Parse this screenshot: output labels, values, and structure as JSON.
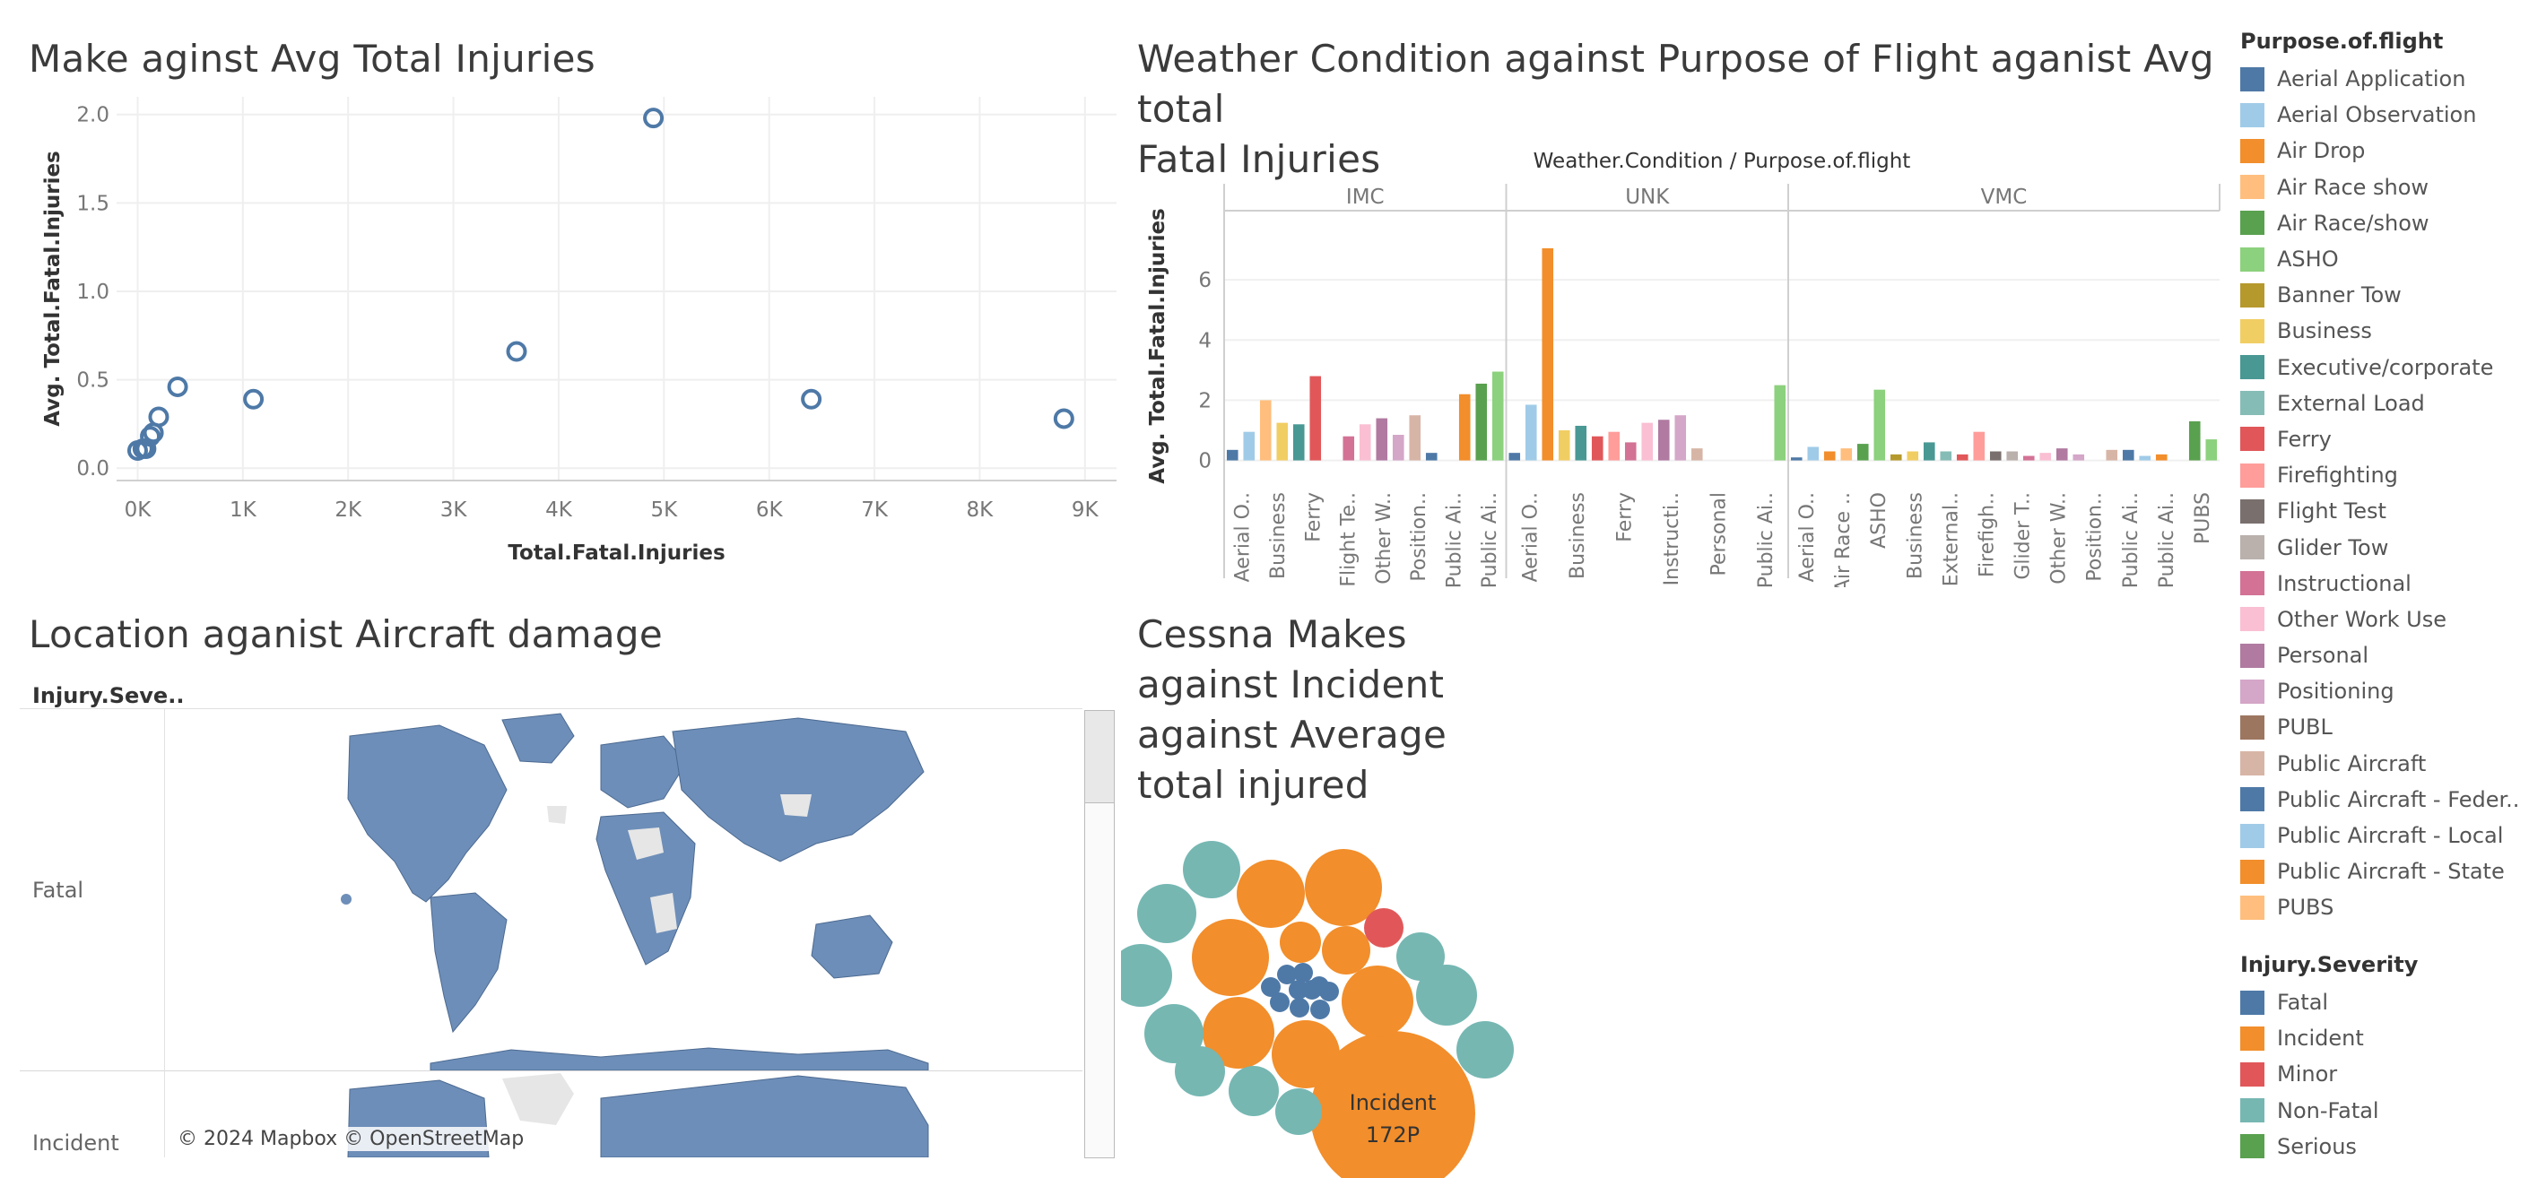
{
  "titles": {
    "scatter": "Make aginst Avg Total Injuries",
    "bar": "Weather Condition against Purpose of Flight aganist Avg total Fatal Injuries",
    "bar_line1": "Weather Condition against Purpose of Flight aganist Avg total",
    "bar_line2": "Fatal Injuries",
    "map": "Location aganist Aircraft damage",
    "bubble": [
      "Cessna Makes",
      "against Incident",
      "against Average",
      "total injured"
    ]
  },
  "map": {
    "header": "Injury.Seve..",
    "rows": [
      "Fatal",
      "Incident"
    ],
    "credits": "© 2024 Mapbox © OpenStreetMap",
    "land_color": "#6d8eb8",
    "other_color": "#e6e6e6"
  },
  "legend_purpose": {
    "title": "Purpose.of.flight",
    "items": [
      {
        "label": "Aerial Application",
        "color": "#4e79a7"
      },
      {
        "label": "Aerial Observation",
        "color": "#a0cbe8"
      },
      {
        "label": "Air Drop",
        "color": "#f28e2b"
      },
      {
        "label": "Air Race show",
        "color": "#ffbe7d"
      },
      {
        "label": "Air Race/show",
        "color": "#59a14f"
      },
      {
        "label": "ASHO",
        "color": "#8cd17d"
      },
      {
        "label": "Banner Tow",
        "color": "#b6992d"
      },
      {
        "label": "Business",
        "color": "#f1ce63"
      },
      {
        "label": "Executive/corporate",
        "color": "#499894"
      },
      {
        "label": "External Load",
        "color": "#86bcb6"
      },
      {
        "label": "Ferry",
        "color": "#e15759"
      },
      {
        "label": "Firefighting",
        "color": "#ff9d9a"
      },
      {
        "label": "Flight Test",
        "color": "#79706e"
      },
      {
        "label": "Glider Tow",
        "color": "#bab0ac"
      },
      {
        "label": "Instructional",
        "color": "#d37295"
      },
      {
        "label": "Other Work Use",
        "color": "#fabfd2"
      },
      {
        "label": "Personal",
        "color": "#b07aa1"
      },
      {
        "label": "Positioning",
        "color": "#d4a6c8"
      },
      {
        "label": "PUBL",
        "color": "#9d7660"
      },
      {
        "label": "Public Aircraft",
        "color": "#d7b5a6"
      },
      {
        "label": "Public Aircraft - Feder..",
        "color": "#4e79a7"
      },
      {
        "label": "Public Aircraft - Local",
        "color": "#a0cbe8"
      },
      {
        "label": "Public Aircraft - State",
        "color": "#f28e2b"
      },
      {
        "label": "PUBS",
        "color": "#ffbe7d"
      }
    ]
  },
  "legend_severity": {
    "title": "Injury.Severity",
    "items": [
      {
        "label": "Fatal",
        "color": "#4e79a7"
      },
      {
        "label": "Incident",
        "color": "#f28e2b"
      },
      {
        "label": "Minor",
        "color": "#e15759"
      },
      {
        "label": "Non-Fatal",
        "color": "#76b7b2"
      },
      {
        "label": "Serious",
        "color": "#59a14f"
      }
    ]
  },
  "bubble_label": {
    "line1": "Incident",
    "line2": "172P"
  },
  "chart_data": [
    {
      "type": "scatter",
      "title": "Make aginst Avg Total Injuries",
      "xlabel": "Total.Fatal.Injuries",
      "ylabel": "Avg. Total.Fatal.Injuries",
      "xlim": [
        -200,
        9300
      ],
      "ylim": [
        -0.07,
        2.1
      ],
      "xticks": [
        0,
        1000,
        2000,
        3000,
        4000,
        5000,
        6000,
        7000,
        8000,
        9000
      ],
      "xtick_labels": [
        "0K",
        "1K",
        "2K",
        "3K",
        "4K",
        "5K",
        "6K",
        "7K",
        "8K",
        "9K"
      ],
      "yticks": [
        0,
        0.5,
        1,
        1.5,
        2
      ],
      "ytick_labels": [
        "0.0",
        "0.5",
        "1.0",
        "1.5",
        "2.0"
      ],
      "grid": true,
      "color": "#4e79a7",
      "points": [
        {
          "x": 0,
          "y": 0.1
        },
        {
          "x": 50,
          "y": 0.11
        },
        {
          "x": 80,
          "y": 0.11
        },
        {
          "x": 120,
          "y": 0.18
        },
        {
          "x": 150,
          "y": 0.2
        },
        {
          "x": 200,
          "y": 0.29
        },
        {
          "x": 380,
          "y": 0.46
        },
        {
          "x": 1100,
          "y": 0.39
        },
        {
          "x": 3600,
          "y": 0.66
        },
        {
          "x": 4900,
          "y": 1.98
        },
        {
          "x": 6400,
          "y": 0.39
        },
        {
          "x": 8800,
          "y": 0.28
        }
      ]
    },
    {
      "type": "bar",
      "title": "Weather Condition against Purpose of Flight aganist Avg total Fatal Injuries",
      "header": "Weather.Condition / Purpose.of.flight",
      "ylabel": "Avg. Total.Fatal.Injuries",
      "ylim": [
        -0.4,
        8
      ],
      "yticks": [
        0,
        2,
        4,
        6
      ],
      "grid": true,
      "panels": [
        {
          "name": "IMC",
          "labels": [
            "Aerial O..",
            "Business",
            "Ferry",
            "Flight Te..",
            "Other W..",
            "Position..",
            "Public Ai..",
            "Public Ai.."
          ],
          "bars": [
            {
              "value": 0.35,
              "color": "#4e79a7"
            },
            {
              "value": 0.95,
              "color": "#a0cbe8"
            },
            {
              "value": 2.0,
              "color": "#ffbe7d"
            },
            {
              "value": 1.25,
              "color": "#f1ce63"
            },
            {
              "value": 1.2,
              "color": "#499894"
            },
            {
              "value": 2.8,
              "color": "#e15759"
            },
            {
              "value": 0,
              "color": "#79706e"
            },
            {
              "value": 0.8,
              "color": "#d37295"
            },
            {
              "value": 1.2,
              "color": "#fabfd2"
            },
            {
              "value": 1.4,
              "color": "#b07aa1"
            },
            {
              "value": 0.85,
              "color": "#d4a6c8"
            },
            {
              "value": 1.5,
              "color": "#d7b5a6"
            },
            {
              "value": 0.25,
              "color": "#4e79a7"
            },
            {
              "value": 0,
              "color": "#a0cbe8"
            },
            {
              "value": 2.2,
              "color": "#f28e2b"
            },
            {
              "value": 2.55,
              "color": "#59a14f"
            },
            {
              "value": 2.95,
              "color": "#8cd17d"
            }
          ]
        },
        {
          "name": "UNK",
          "labels": [
            "Aerial O..",
            "Business",
            "Ferry",
            "Instructi..",
            "Personal",
            "Public Ai.."
          ],
          "bars": [
            {
              "value": 0.25,
              "color": "#4e79a7"
            },
            {
              "value": 1.85,
              "color": "#a0cbe8"
            },
            {
              "value": 7.05,
              "color": "#f28e2b"
            },
            {
              "value": 1.0,
              "color": "#f1ce63"
            },
            {
              "value": 1.15,
              "color": "#499894"
            },
            {
              "value": 0.8,
              "color": "#e15759"
            },
            {
              "value": 0.95,
              "color": "#ff9d9a"
            },
            {
              "value": 0.6,
              "color": "#d37295"
            },
            {
              "value": 1.25,
              "color": "#fabfd2"
            },
            {
              "value": 1.35,
              "color": "#b07aa1"
            },
            {
              "value": 1.5,
              "color": "#d4a6c8"
            },
            {
              "value": 0.4,
              "color": "#d7b5a6"
            },
            {
              "value": 0,
              "color": "#4e79a7"
            },
            {
              "value": 0,
              "color": "#a0cbe8"
            },
            {
              "value": 0,
              "color": "#f28e2b"
            },
            {
              "value": 0,
              "color": "#59a14f"
            },
            {
              "value": 2.5,
              "color": "#8cd17d"
            }
          ]
        },
        {
          "name": "VMC",
          "labels": [
            "Aerial O..",
            "Air Race ..",
            "ASHO",
            "Business",
            "External..",
            "Firefigh..",
            "Glider T..",
            "Other W..",
            "Position..",
            "Public Ai..",
            "Public Ai..",
            "PUBS"
          ],
          "bars": [
            {
              "value": 0.1,
              "color": "#4e79a7"
            },
            {
              "value": 0.45,
              "color": "#a0cbe8"
            },
            {
              "value": 0.3,
              "color": "#f28e2b"
            },
            {
              "value": 0.4,
              "color": "#ffbe7d"
            },
            {
              "value": 0.55,
              "color": "#59a14f"
            },
            {
              "value": 2.35,
              "color": "#8cd17d"
            },
            {
              "value": 0.2,
              "color": "#b6992d"
            },
            {
              "value": 0.3,
              "color": "#f1ce63"
            },
            {
              "value": 0.6,
              "color": "#499894"
            },
            {
              "value": 0.3,
              "color": "#86bcb6"
            },
            {
              "value": 0.2,
              "color": "#e15759"
            },
            {
              "value": 0.95,
              "color": "#ff9d9a"
            },
            {
              "value": 0.3,
              "color": "#79706e"
            },
            {
              "value": 0.3,
              "color": "#bab0ac"
            },
            {
              "value": 0.15,
              "color": "#d37295"
            },
            {
              "value": 0.25,
              "color": "#fabfd2"
            },
            {
              "value": 0.4,
              "color": "#b07aa1"
            },
            {
              "value": 0.2,
              "color": "#d4a6c8"
            },
            {
              "value": 0,
              "color": "#9d7660"
            },
            {
              "value": 0.35,
              "color": "#d7b5a6"
            },
            {
              "value": 0.35,
              "color": "#4e79a7"
            },
            {
              "value": 0.15,
              "color": "#a0cbe8"
            },
            {
              "value": 0.2,
              "color": "#f28e2b"
            },
            {
              "value": 0,
              "color": "#ffbe7d"
            },
            {
              "value": 1.3,
              "color": "#59a14f"
            },
            {
              "value": 0.7,
              "color": "#8cd17d"
            }
          ]
        }
      ]
    },
    {
      "type": "bubble",
      "title": "Cessna Makes against Incident against Average total injured",
      "series": [
        {
          "name": "Incident",
          "color": "#f28e2b",
          "values": [
            172,
            58,
            58,
            58,
            55,
            52,
            50,
            38,
            26,
            26
          ]
        },
        {
          "name": "Non-Fatal",
          "color": "#76b7b2",
          "values": [
            38,
            38,
            35,
            35,
            33,
            31,
            30,
            27,
            25,
            24,
            24,
            22
          ]
        },
        {
          "name": "Minor",
          "color": "#e15759",
          "values": [
            20
          ]
        },
        {
          "name": "Fatal",
          "color": "#4e79a7",
          "values": [
            8,
            8,
            8,
            8,
            8,
            8,
            8,
            8,
            8,
            8,
            8
          ]
        }
      ]
    }
  ]
}
